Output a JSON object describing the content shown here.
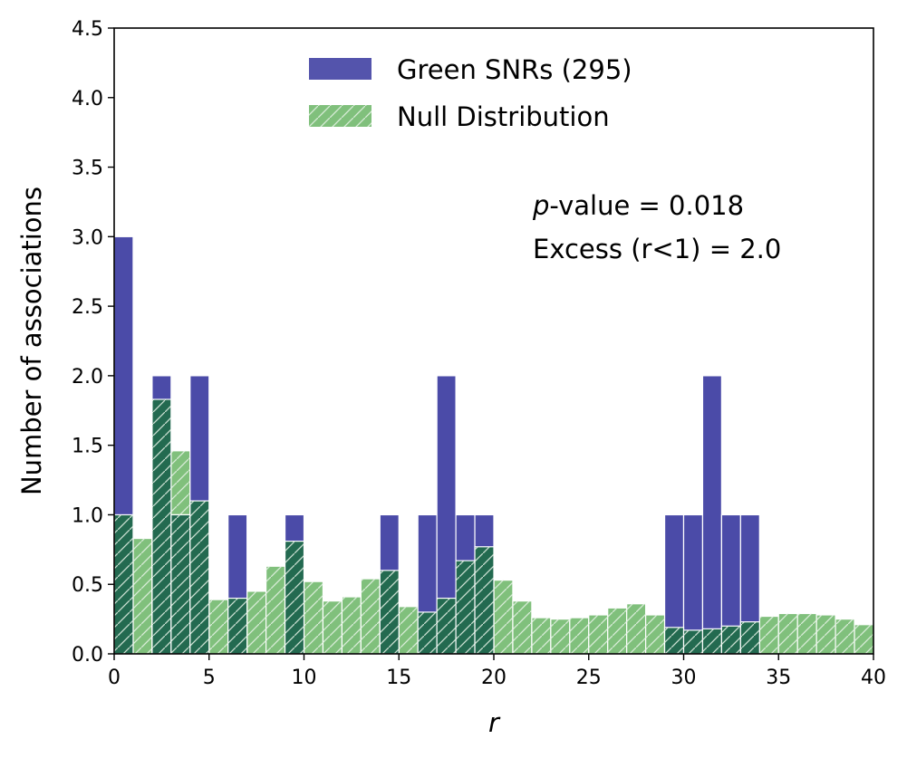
{
  "chart_data": {
    "type": "bar",
    "xlabel": "r",
    "ylabel": "Number of associations",
    "xlim": [
      0,
      40
    ],
    "ylim": [
      0,
      4.5
    ],
    "xticks": [
      "0",
      "5",
      "10",
      "15",
      "20",
      "25",
      "30",
      "35",
      "40"
    ],
    "yticks": [
      "0.0",
      "0.5",
      "1.0",
      "1.5",
      "2.0",
      "2.5",
      "3.0",
      "3.5",
      "4.0",
      "4.5"
    ],
    "bin_width": 1,
    "bin_starts": [
      0,
      1,
      2,
      3,
      4,
      5,
      6,
      7,
      8,
      9,
      10,
      11,
      12,
      13,
      14,
      15,
      16,
      17,
      18,
      19,
      20,
      21,
      22,
      23,
      24,
      25,
      26,
      27,
      28,
      29,
      30,
      31,
      32,
      33,
      34,
      35,
      36,
      37,
      38,
      39
    ],
    "series": [
      {
        "name": "Green SNRs (295)",
        "color": "#4b4ba8",
        "values": [
          3,
          0,
          2,
          1,
          2,
          0,
          1,
          0,
          0,
          1,
          0,
          0,
          0,
          0,
          1,
          0,
          1,
          2,
          1,
          1,
          0,
          0,
          0,
          0,
          0,
          0,
          0,
          0,
          0,
          1,
          1,
          2,
          1,
          1,
          0,
          0,
          0,
          0,
          0,
          0
        ]
      },
      {
        "name": "Null Distribution",
        "color": "#80c07c",
        "hatch": "/",
        "values": [
          1.0,
          0.83,
          1.83,
          1.46,
          1.1,
          0.39,
          0.4,
          0.45,
          0.63,
          0.81,
          0.52,
          0.38,
          0.41,
          0.54,
          0.6,
          0.34,
          0.3,
          0.4,
          0.67,
          0.77,
          0.53,
          0.38,
          0.26,
          0.25,
          0.26,
          0.28,
          0.33,
          0.36,
          0.28,
          0.19,
          0.17,
          0.18,
          0.2,
          0.23,
          0.27,
          0.29,
          0.29,
          0.28,
          0.25,
          0.21
        ]
      }
    ],
    "overlap_color": "#236a50",
    "annotations": [
      {
        "prefix_italic": "p",
        "text": "-value = 0.018"
      },
      {
        "prefix_italic": "",
        "text": "Excess (r<1) = 2.0"
      }
    ],
    "legend_position": "top-center"
  }
}
